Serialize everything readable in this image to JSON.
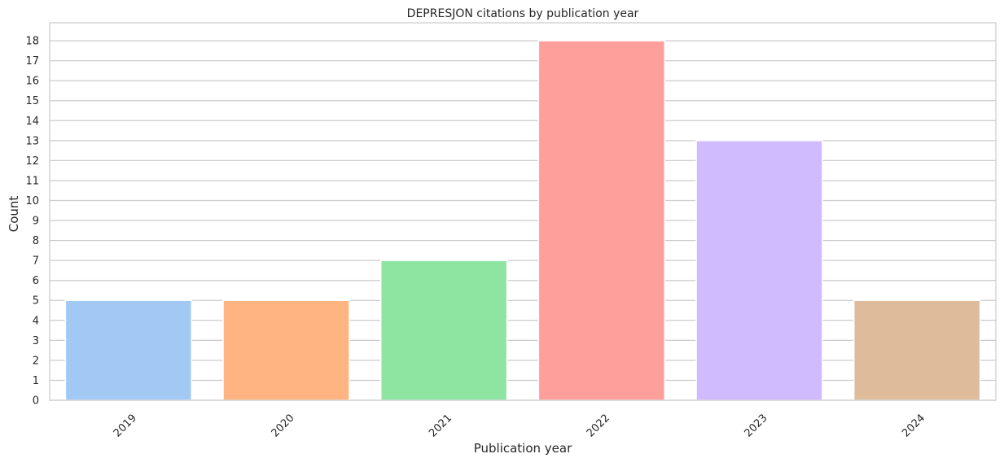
{
  "chart_data": {
    "type": "bar",
    "title": "DEPRESJON citations by publication year",
    "xlabel": "Publication year",
    "ylabel": "Count",
    "categories": [
      "2019",
      "2020",
      "2021",
      "2022",
      "2023",
      "2024"
    ],
    "values": [
      5,
      5,
      7,
      18,
      13,
      5
    ],
    "colors": [
      "#a1c9f4",
      "#ffb482",
      "#8de5a1",
      "#ff9f9b",
      "#d0bbff",
      "#debb9b"
    ],
    "ylim": [
      0,
      18.9
    ],
    "yticks": [
      0,
      1,
      2,
      3,
      4,
      5,
      6,
      7,
      8,
      9,
      10,
      11,
      12,
      13,
      14,
      15,
      16,
      17,
      18
    ],
    "grid": "horizontal",
    "xtick_rotation": 45
  }
}
